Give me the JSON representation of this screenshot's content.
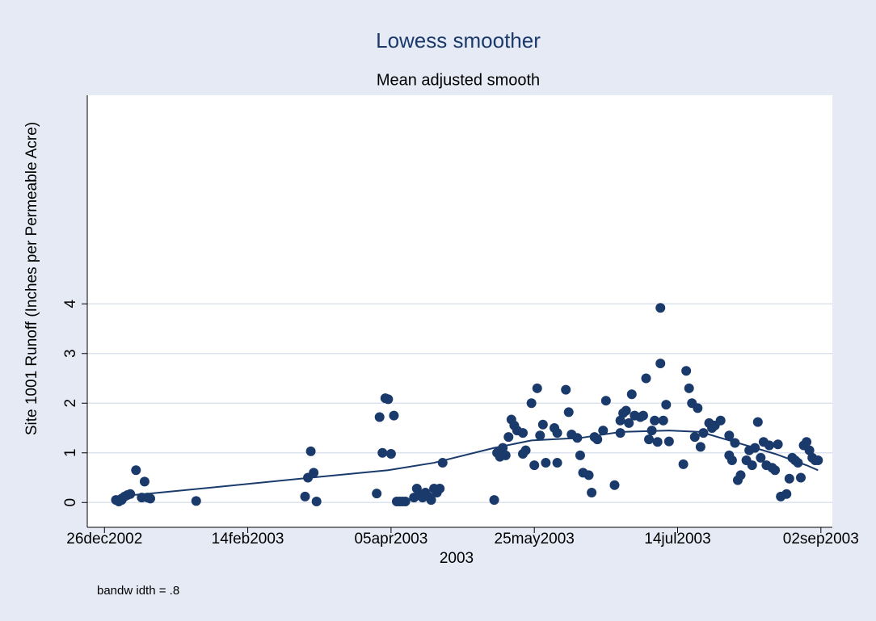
{
  "chart_data": {
    "type": "scatter",
    "title": "Lowess smoother",
    "subtitle": "Mean adjusted smooth",
    "ylabel": "Site 1001 Runoff (Inches per Permeable Acre)",
    "xlabel": "2003",
    "note": "bandw idth = .8",
    "grid": true,
    "xlim": [
      "2002-12-20",
      "2003-09-06"
    ],
    "xticks": [
      {
        "value": "2002-12-26",
        "label": "26dec2002"
      },
      {
        "value": "2003-02-14",
        "label": "14feb2003"
      },
      {
        "value": "2003-04-05",
        "label": "05apr2003"
      },
      {
        "value": "2003-05-25",
        "label": "25may2003"
      },
      {
        "value": "2003-07-14",
        "label": "14jul2003"
      },
      {
        "value": "2003-09-02",
        "label": "02sep2003"
      }
    ],
    "ylim": [
      -0.5,
      8.2
    ],
    "yticks": [
      0,
      1,
      2,
      3,
      4
    ],
    "series": [
      {
        "type": "scatter",
        "color": "#1a3a6b",
        "x": [
          "2002-12-30",
          "2002-12-31",
          "2003-01-01",
          "2003-01-01",
          "2003-01-02",
          "2003-01-03",
          "2003-01-04",
          "2003-01-06",
          "2003-01-08",
          "2003-01-09",
          "2003-01-10",
          "2003-01-11",
          "2003-01-27",
          "2003-03-06",
          "2003-03-07",
          "2003-03-08",
          "2003-03-09",
          "2003-03-10",
          "2003-03-31",
          "2003-04-01",
          "2003-04-02",
          "2003-04-03",
          "2003-04-04",
          "2003-04-05",
          "2003-04-06",
          "2003-04-07",
          "2003-04-08",
          "2003-04-09",
          "2003-04-10",
          "2003-04-13",
          "2003-04-14",
          "2003-04-15",
          "2003-04-16",
          "2003-04-17",
          "2003-04-18",
          "2003-04-19",
          "2003-04-20",
          "2003-04-21",
          "2003-04-22",
          "2003-04-23",
          "2003-05-11",
          "2003-05-12",
          "2003-05-13",
          "2003-05-14",
          "2003-05-15",
          "2003-05-16",
          "2003-05-17",
          "2003-05-18",
          "2003-05-19",
          "2003-05-21",
          "2003-05-21",
          "2003-05-22",
          "2003-05-24",
          "2003-05-25",
          "2003-05-26",
          "2003-05-27",
          "2003-05-28",
          "2003-05-29",
          "2003-06-01",
          "2003-06-02",
          "2003-06-02",
          "2003-06-05",
          "2003-06-06",
          "2003-06-07",
          "2003-06-09",
          "2003-06-10",
          "2003-06-11",
          "2003-06-13",
          "2003-06-14",
          "2003-06-15",
          "2003-06-16",
          "2003-06-18",
          "2003-06-19",
          "2003-06-22",
          "2003-06-24",
          "2003-06-24",
          "2003-06-25",
          "2003-06-26",
          "2003-06-27",
          "2003-06-28",
          "2003-06-29",
          "2003-07-01",
          "2003-07-02",
          "2003-07-03",
          "2003-07-04",
          "2003-07-05",
          "2003-07-06",
          "2003-07-07",
          "2003-07-08",
          "2003-07-08",
          "2003-07-09",
          "2003-07-10",
          "2003-07-11",
          "2003-07-16",
          "2003-07-17",
          "2003-07-18",
          "2003-07-19",
          "2003-07-20",
          "2003-07-21",
          "2003-07-22",
          "2003-07-23",
          "2003-07-25",
          "2003-07-26",
          "2003-07-27",
          "2003-07-29",
          "2003-08-01",
          "2003-08-01",
          "2003-08-02",
          "2003-08-03",
          "2003-08-04",
          "2003-08-05",
          "2003-08-07",
          "2003-08-08",
          "2003-08-09",
          "2003-08-10",
          "2003-08-11",
          "2003-08-12",
          "2003-08-13",
          "2003-08-14",
          "2003-08-15",
          "2003-08-16",
          "2003-08-17",
          "2003-08-18",
          "2003-08-19",
          "2003-08-21",
          "2003-08-22",
          "2003-08-23",
          "2003-08-24",
          "2003-08-25",
          "2003-08-26",
          "2003-08-27",
          "2003-08-28",
          "2003-08-29",
          "2003-08-30",
          "2003-08-31",
          "2003-09-01"
        ],
        "values": [
          0.05,
          0.02,
          0.05,
          0.08,
          0.12,
          0.15,
          0.17,
          0.65,
          0.1,
          0.42,
          0.1,
          0.08,
          0.03,
          0.12,
          0.5,
          1.03,
          0.6,
          0.02,
          0.18,
          1.72,
          1.0,
          2.1,
          2.08,
          0.98,
          1.75,
          0.02,
          0.02,
          0.02,
          0.02,
          0.1,
          0.28,
          0.15,
          0.1,
          0.2,
          0.12,
          0.05,
          0.28,
          0.2,
          0.28,
          0.8,
          0.05,
          1.0,
          0.92,
          1.1,
          0.95,
          1.32,
          1.67,
          1.55,
          1.45,
          1.4,
          0.98,
          1.05,
          2.0,
          0.75,
          2.3,
          1.35,
          1.57,
          0.8,
          1.5,
          1.4,
          0.8,
          2.27,
          1.82,
          1.37,
          1.3,
          0.95,
          0.6,
          0.55,
          0.2,
          1.32,
          1.27,
          1.45,
          2.05,
          0.35,
          1.4,
          1.65,
          1.8,
          1.85,
          1.6,
          2.18,
          1.75,
          1.72,
          1.75,
          2.5,
          1.27,
          1.45,
          1.65,
          1.22,
          2.8,
          3.92,
          1.65,
          1.97,
          1.23,
          0.77,
          2.65,
          2.3,
          2.0,
          1.32,
          1.9,
          1.12,
          1.4,
          1.6,
          1.5,
          1.55,
          1.65,
          1.35,
          0.95,
          0.85,
          1.2,
          0.45,
          0.55,
          0.85,
          1.05,
          0.75,
          1.1,
          1.62,
          0.9,
          1.22,
          0.75,
          1.15,
          0.7,
          0.65,
          1.17,
          0.12,
          0.17,
          0.48,
          0.9,
          0.85,
          0.8,
          0.5,
          1.15,
          1.22,
          1.05,
          0.9,
          0.85,
          0.85
        ]
      },
      {
        "type": "line",
        "color": "#1a3a6b",
        "x": [
          "2002-12-30",
          "2003-01-11",
          "2003-03-08",
          "2003-04-04",
          "2003-04-20",
          "2003-05-11",
          "2003-05-24",
          "2003-06-10",
          "2003-06-24",
          "2003-07-11",
          "2003-07-22",
          "2003-08-04",
          "2003-08-17",
          "2003-08-28",
          "2003-09-01"
        ],
        "values": [
          0.12,
          0.18,
          0.5,
          0.65,
          0.8,
          1.1,
          1.25,
          1.3,
          1.42,
          1.45,
          1.42,
          1.2,
          0.98,
          0.75,
          0.65
        ]
      }
    ]
  }
}
